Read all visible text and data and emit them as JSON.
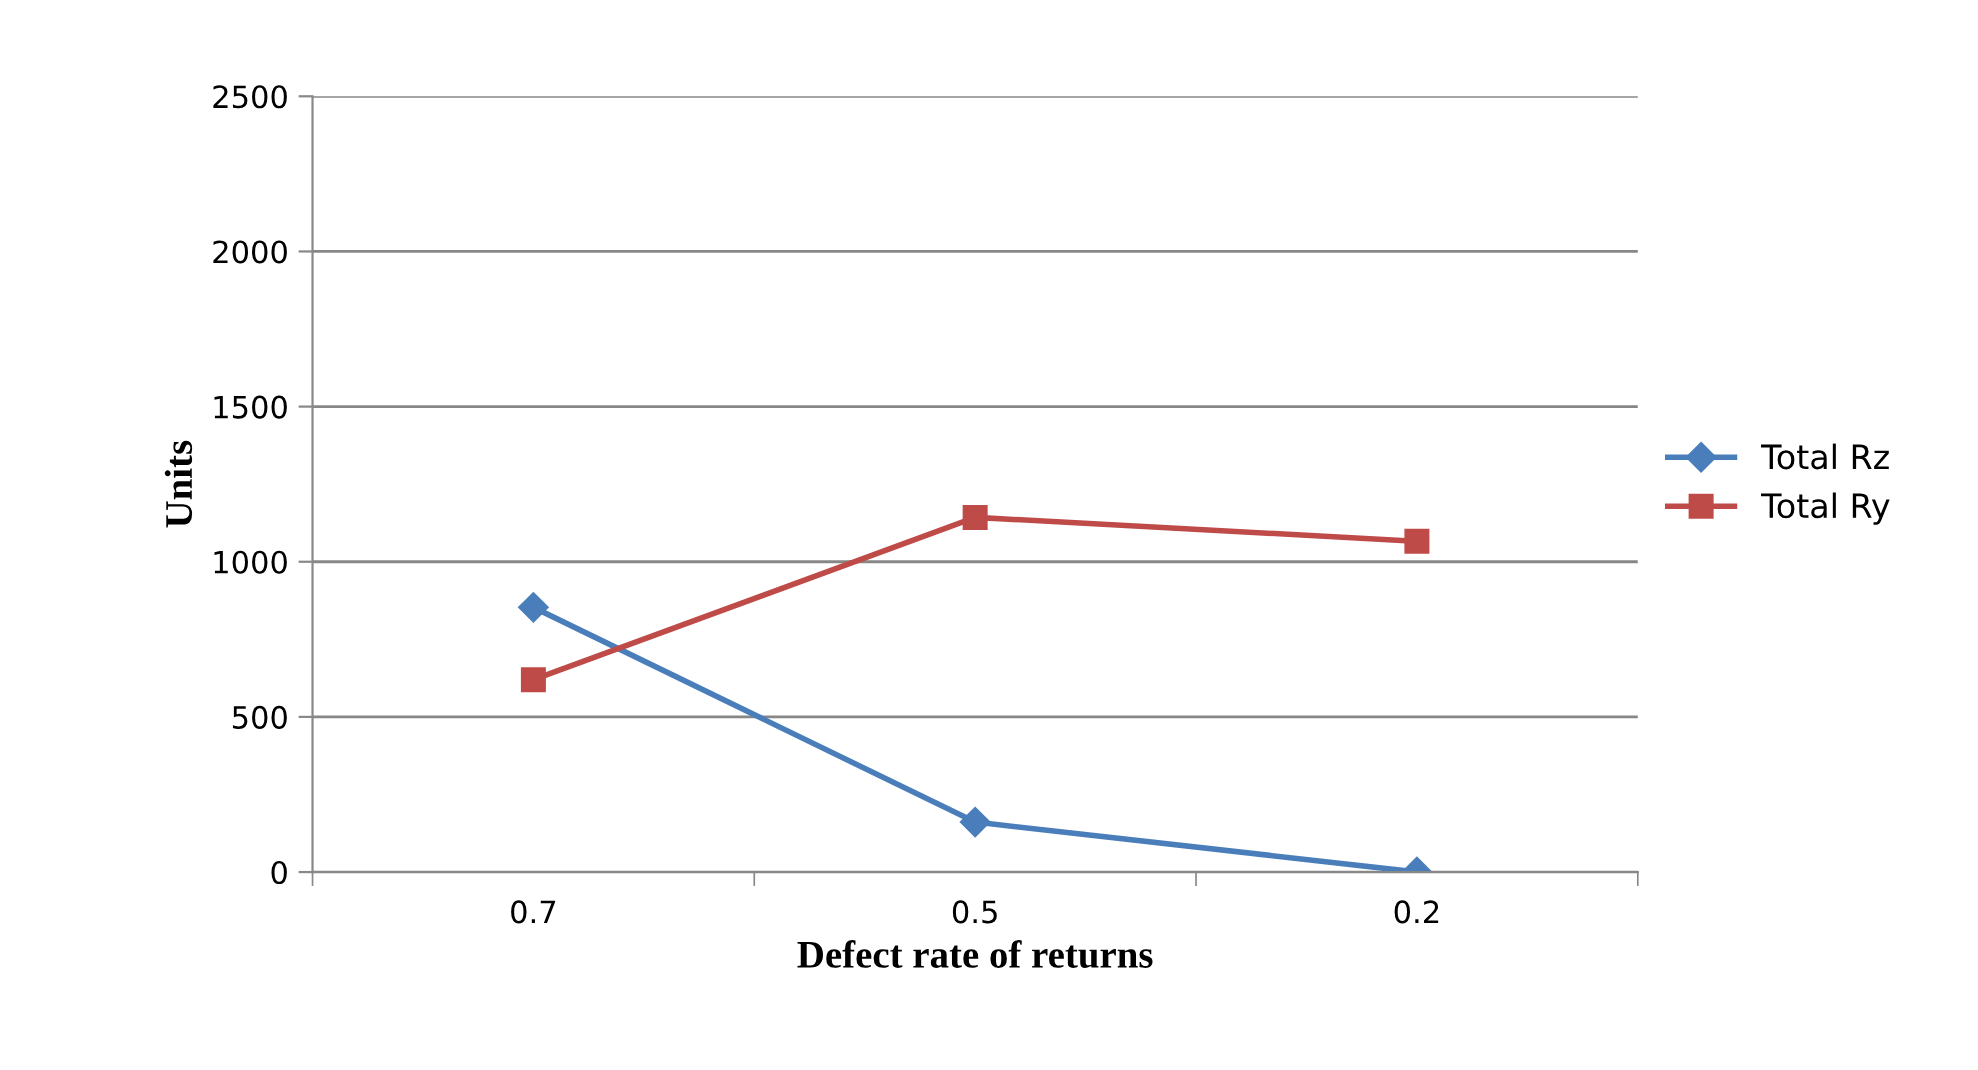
{
  "chart_data": {
    "type": "line",
    "xlabel": "Defect rate of returns",
    "ylabel": "Units",
    "categories": [
      "0.7",
      "0.5",
      "0.2"
    ],
    "series": [
      {
        "name": "Total Rz",
        "color": "#4a7ebb",
        "marker": "diamond",
        "values": [
          853,
          161,
          0
        ]
      },
      {
        "name": "Total Ry",
        "color": "#be4b48",
        "marker": "square",
        "values": [
          620,
          1143,
          1066
        ]
      }
    ],
    "ylim": [
      0,
      2500
    ],
    "yticks": [
      0,
      500,
      1000,
      1500,
      2000,
      2500
    ],
    "grid": "y",
    "legend": "right",
    "line_style": "solid"
  }
}
